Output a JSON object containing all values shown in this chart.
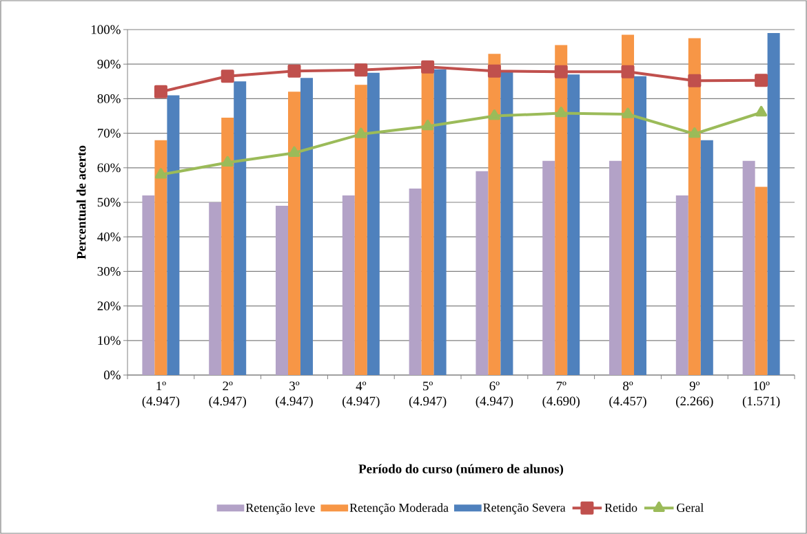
{
  "chart_data": {
    "type": "bar",
    "xlabel": "Período do curso (número de alunos)",
    "ylabel": "Percentual de acerto",
    "categories": [
      "1º (4.947)",
      "2º (4.947)",
      "3º (4.947)",
      "4º (4.947)",
      "5º (4.947)",
      "6º (4.947)",
      "7º (4.690)",
      "8º (4.457)",
      "9º (2.266)",
      "10º (1.571)"
    ],
    "ylim": [
      0,
      100
    ],
    "yticks": [
      {
        "value": 0,
        "label": "0%"
      },
      {
        "value": 10,
        "label": "10%"
      },
      {
        "value": 20,
        "label": "20%"
      },
      {
        "value": 30,
        "label": "30%"
      },
      {
        "value": 40,
        "label": "40%"
      },
      {
        "value": 50,
        "label": "50%"
      },
      {
        "value": 60,
        "label": "60%"
      },
      {
        "value": 70,
        "label": "70%"
      },
      {
        "value": 80,
        "label": "80%"
      },
      {
        "value": 90,
        "label": "90%"
      },
      {
        "value": 100,
        "label": "100%"
      }
    ],
    "grid": "y",
    "legend": "bottom",
    "series": [
      {
        "name": "Retenção leve",
        "color": "#b3a2c7",
        "values": [
          52,
          50,
          49,
          52,
          54,
          59,
          62,
          62,
          52,
          62
        ]
      },
      {
        "name": "Retenção Moderada",
        "color": "#f79646",
        "values": [
          68,
          74.5,
          82,
          84,
          89,
          93,
          95.5,
          98.5,
          97.5,
          54.5
        ]
      },
      {
        "name": "Retenção Severa",
        "color": "#4f81bd",
        "values": [
          81,
          85,
          86,
          87.5,
          88.5,
          88,
          87,
          86.5,
          68,
          99
        ]
      },
      {
        "name": "Retido",
        "type": "line",
        "marker": "square",
        "color": "#c0504d",
        "values": [
          82,
          86.5,
          88,
          88.3,
          89.2,
          88,
          87.8,
          87.8,
          85.2,
          85.3
        ]
      },
      {
        "name": "Geral",
        "type": "line",
        "marker": "triangle",
        "color": "#9bbb59",
        "values": [
          58,
          61.5,
          64.3,
          69.7,
          72,
          75,
          75.8,
          75.5,
          69.8,
          76
        ]
      }
    ]
  }
}
